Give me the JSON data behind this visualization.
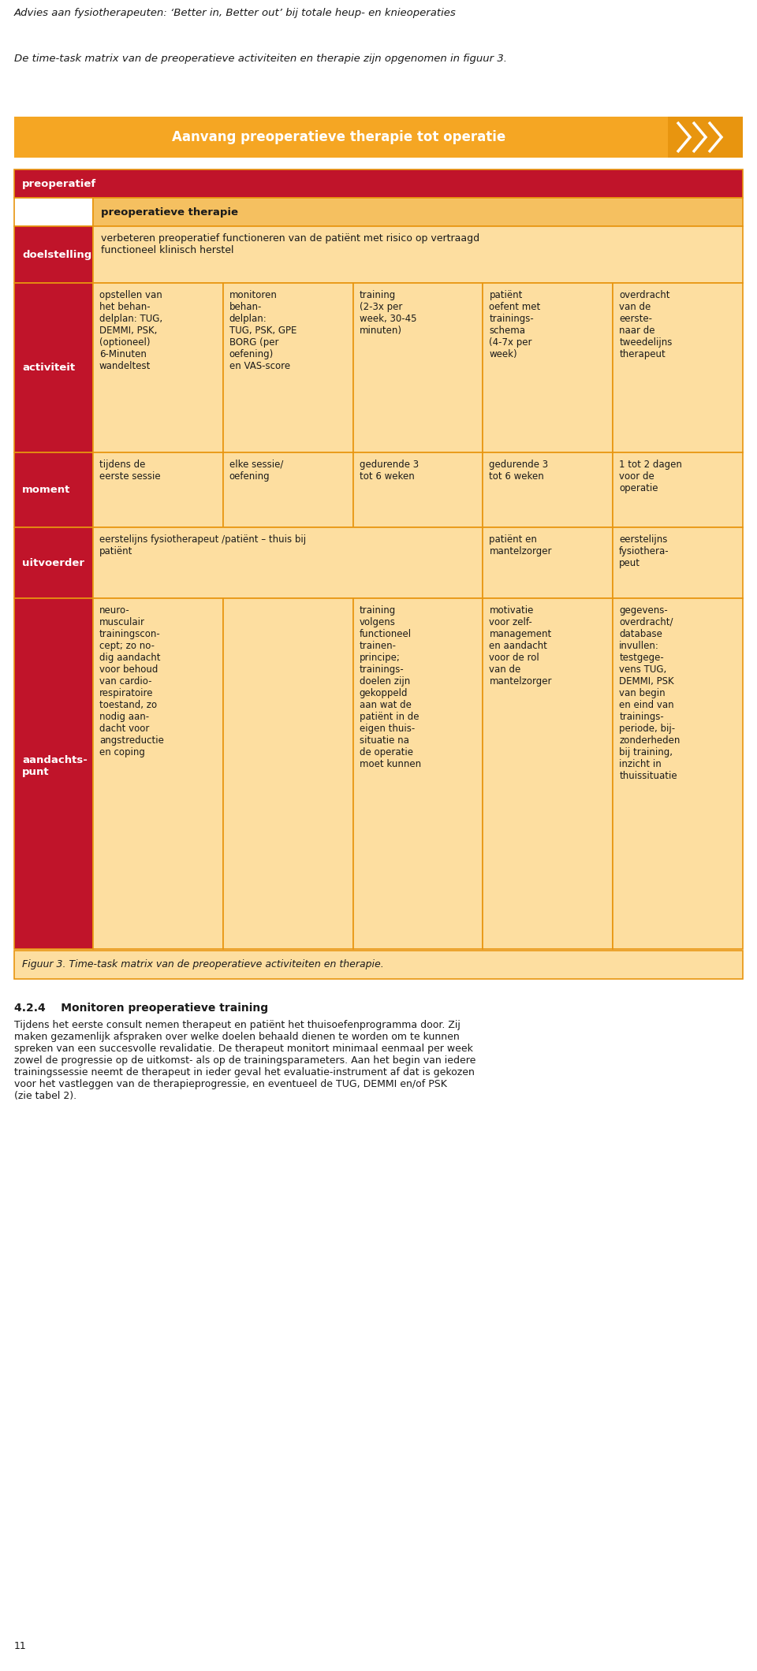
{
  "title_line1": "Advies aan fysiotherapeuten: ‘Better in, Better out’ bij totale heup- en knieoperaties",
  "subtitle": "De time-task matrix van de preoperatieve activiteiten en therapie zijn opgenomen in figuur 3.",
  "banner_text": "Aanvang preoperatieve therapie tot operatie",
  "banner_color": "#F5A623",
  "header_row_color": "#C0142A",
  "cell_color_light": "#FDDEA0",
  "cell_color_medium": "#F5C060",
  "border_color": "#E8950F",
  "row_labels": [
    "preoperatief",
    "doelstelling",
    "activiteit",
    "moment",
    "uitvoerder",
    "aandachts-\npunt"
  ],
  "col2_header": "preoperatieve therapie",
  "doelstelling_text": "verbeteren preoperatief functioneren van de patiënt met risico op vertraagd\nfunctioneel klinisch herstel",
  "activiteit_cols": [
    "opstellen van\nhet behan-\ndelplan: TUG,\nDEMMI, PSK,\n(optioneel)\n6-Minuten\nwandeltest",
    "monitoren\nbehan-\ndelplan:\nTUG, PSK, GPE\nBORG (per\noefening)\nen VAS-score",
    "training\n(2-3x per\nweek, 30-45\nminuten)",
    "patiënt\noefent met\ntrainings-\nschema\n(4-7x per\nweek)",
    "overdracht\nvan de\neerste-\nnaar de\ntweedelijns\ntherapeut"
  ],
  "moment_cols": [
    "tijdens de\neerste sessie",
    "elke sessie/\noefening",
    "gedurende 3\ntot 6 weken",
    "gedurende 3\ntot 6 weken",
    "1 tot 2 dagen\nvoor de\noperatie"
  ],
  "uitvoerder_col1": "eerstelijns fysiotherapeut /patiënt – thuis bij\npatiënt",
  "uitvoerder_col4": "patiënt en\nmantelzorger",
  "uitvoerder_col5": "eerstelijns\nfysiothera-\npeut",
  "aandacht_cols": [
    "neuro-\nmusculair\ntrainingscon-\ncept; zo no-\ndig aandacht\nvoor behoud\nvan cardio-\nrespiratoire\ntoestand, zo\nnodig aan-\ndacht voor\nangstreductie\nen coping",
    "",
    "training\nvolgens\nfunctioneel\ntrainen-\nprincipe;\ntrainings-\ndoelen zijn\ngekoppeld\naan wat de\npatiënt in de\neigen thuis-\nsituatie na\nde operatie\nmoet kunnen",
    "motivatie\nvoor zelf-\nmanagement\nen aandacht\nvoor de rol\nvan de\nmantelzorger",
    "gegevens-\noverdracht/\ndatabase\ninvullen:\ntestgege-\nvens TUG,\nDEMMI, PSK\nvan begin\nen eind van\ntrainings-\nperiode, bij-\nzonderheden\nbij training,\ninzicht in\nthuissituatie"
  ],
  "figure_caption": "Figuur 3. Time-task matrix van de preoperatieve activiteiten en therapie.",
  "bottom_text_title": "4.2.4    Monitoren preoperatieve training",
  "bottom_text": "Tijdens het eerste consult nemen therapeut en patiënt het thuisoefenprogramma door. Zij\nmaken gezamenlijk afspraken over welke doelen behaald dienen te worden om te kunnen\nspreken van een succesvolle revalidatie. De therapeut monitort minimaal eenmaal per week\nzowel de progressie op de uitkomst- als op de trainingsparameters. Aan het begin van iedere\ntrainingssessie neemt de therapeut in ieder geval het evaluatie-instrument af dat is gekozen\nvoor het vastleggen van de therapieprogressie, en eventueel de TUG, DEMMI en/of PSK\n(zie tabel 2).",
  "page_number": "11"
}
